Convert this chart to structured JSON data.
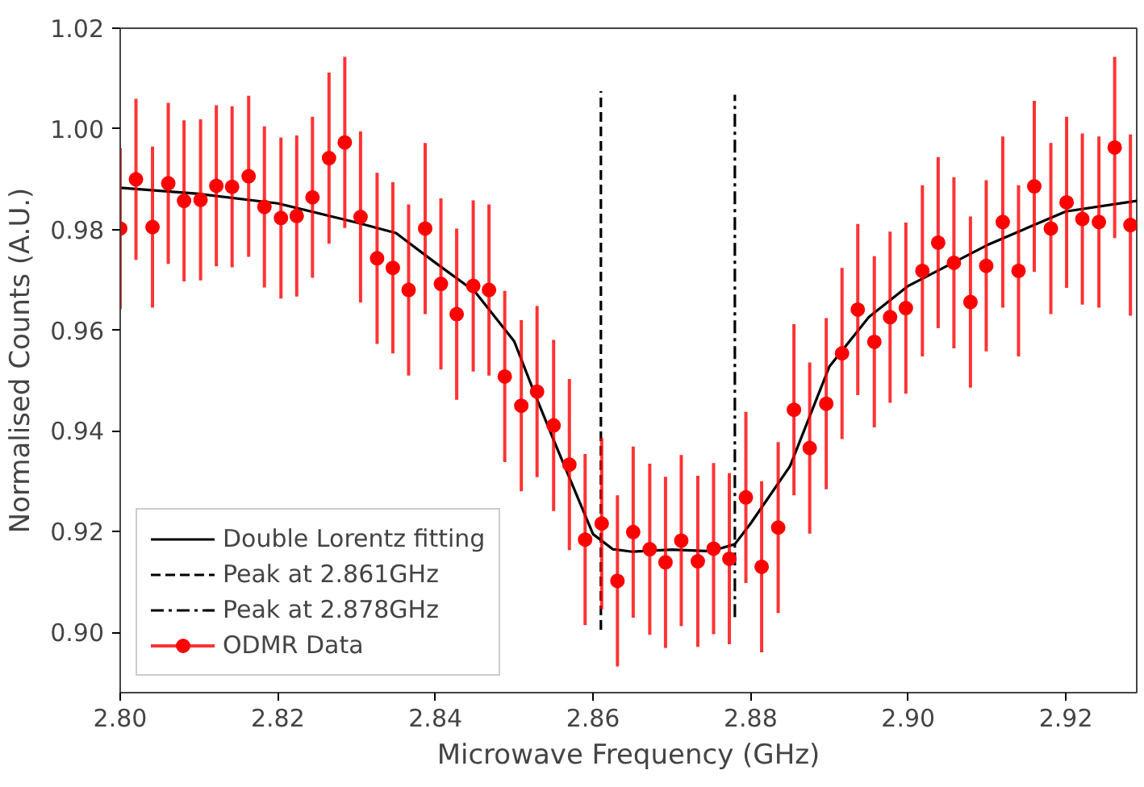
{
  "chart_data": {
    "type": "scatter",
    "xlabel": "Microwave Frequency (GHz)",
    "ylabel": "Normalised Counts (A.U.)",
    "xlim": [
      2.8,
      2.929
    ],
    "ylim": [
      0.888,
      1.02
    ],
    "xticks": [
      {
        "value": 2.8,
        "label": "2.80"
      },
      {
        "value": 2.82,
        "label": "2.82"
      },
      {
        "value": 2.84,
        "label": "2.84"
      },
      {
        "value": 2.86,
        "label": "2.86"
      },
      {
        "value": 2.88,
        "label": "2.88"
      },
      {
        "value": 2.9,
        "label": "2.90"
      },
      {
        "value": 2.92,
        "label": "2.92"
      }
    ],
    "yticks": [
      {
        "value": 0.9,
        "label": "0.90"
      },
      {
        "value": 0.92,
        "label": "0.92"
      },
      {
        "value": 0.94,
        "label": "0.94"
      },
      {
        "value": 0.96,
        "label": "0.96"
      },
      {
        "value": 0.98,
        "label": "0.98"
      },
      {
        "value": 1.0,
        "label": "1.00"
      },
      {
        "value": 1.02,
        "label": "1.02"
      }
    ],
    "grid": false,
    "legend": "bottom left",
    "marker": "circle",
    "series": [
      {
        "name": "Double Lorentz fitting",
        "type": "line",
        "line_style": "solid",
        "marker": "none",
        "color": "#000000",
        "x": [
          2.8,
          2.81,
          2.82,
          2.83,
          2.835,
          2.84,
          2.845,
          2.85,
          2.8525,
          2.855,
          2.86,
          2.8625,
          2.865,
          2.87,
          2.875,
          2.878,
          2.88,
          2.885,
          2.89,
          2.895,
          2.9,
          2.91,
          2.92,
          2.929
        ],
        "values": [
          0.9883,
          0.9871,
          0.9852,
          0.9814,
          0.9793,
          0.9734,
          0.9677,
          0.9578,
          0.9478,
          0.9382,
          0.9195,
          0.9165,
          0.916,
          0.9164,
          0.9161,
          0.9175,
          0.9216,
          0.933,
          0.9528,
          0.9626,
          0.9688,
          0.9769,
          0.9836,
          0.9857
        ]
      },
      {
        "name": "Peak at 2.861GHz",
        "type": "line",
        "line_style": "dashed",
        "marker": "none",
        "color": "#000000",
        "x": [
          2.861,
          2.861
        ],
        "values": [
          0.9005,
          1.0075
        ]
      },
      {
        "name": "Peak at 2.878GHz",
        "type": "line",
        "line_style": "dashdot",
        "marker": "none",
        "color": "#000000",
        "x": [
          2.878,
          2.878
        ],
        "values": [
          0.903,
          1.0068
        ]
      },
      {
        "name": "ODMR Data",
        "color": "#ff0000",
        "x": [
          2.8,
          2.802,
          2.8041,
          2.8061,
          2.8081,
          2.8102,
          2.8122,
          2.8142,
          2.8163,
          2.8183,
          2.8204,
          2.8224,
          2.8244,
          2.8265,
          2.8285,
          2.8305,
          2.8326,
          2.8346,
          2.8366,
          2.8387,
          2.8407,
          2.8427,
          2.8448,
          2.8468,
          2.8488,
          2.8509,
          2.8529,
          2.855,
          2.857,
          2.859,
          2.8611,
          2.8631,
          2.8651,
          2.8672,
          2.8692,
          2.8712,
          2.8733,
          2.8753,
          2.8773,
          2.8794,
          2.8814,
          2.8835,
          2.8855,
          2.8875,
          2.8896,
          2.8916,
          2.8936,
          2.8957,
          2.8977,
          2.8997,
          2.9018,
          2.9038,
          2.9058,
          2.9079,
          2.9099,
          2.912,
          2.914,
          2.916,
          2.9181,
          2.9201,
          2.9221,
          2.9242,
          2.9262,
          2.9282
        ],
        "values": [
          0.9802,
          0.99,
          0.9805,
          0.9892,
          0.9857,
          0.9859,
          0.9887,
          0.9885,
          0.9906,
          0.9845,
          0.9823,
          0.9827,
          0.9864,
          0.9942,
          0.9973,
          0.9825,
          0.9743,
          0.9724,
          0.968,
          0.9802,
          0.9692,
          0.9632,
          0.9688,
          0.968,
          0.9508,
          0.945,
          0.9478,
          0.9411,
          0.9333,
          0.9184,
          0.9216,
          0.9102,
          0.9199,
          0.9165,
          0.9139,
          0.9182,
          0.9141,
          0.9166,
          0.9146,
          0.9268,
          0.913,
          0.9208,
          0.9442,
          0.9366,
          0.9454,
          0.9554,
          0.9641,
          0.9577,
          0.9626,
          0.9644,
          0.9718,
          0.9774,
          0.9734,
          0.9656,
          0.9728,
          0.9815,
          0.9718,
          0.9886,
          0.9802,
          0.9854,
          0.9821,
          0.9815,
          0.9963,
          0.9809
        ],
        "errors": [
          0.016,
          0.016,
          0.016,
          0.016,
          0.016,
          0.016,
          0.016,
          0.016,
          0.016,
          0.016,
          0.016,
          0.016,
          0.016,
          0.017,
          0.017,
          0.017,
          0.017,
          0.017,
          0.017,
          0.017,
          0.017,
          0.017,
          0.017,
          0.017,
          0.017,
          0.017,
          0.017,
          0.017,
          0.017,
          0.017,
          0.017,
          0.017,
          0.017,
          0.017,
          0.017,
          0.017,
          0.017,
          0.017,
          0.017,
          0.017,
          0.017,
          0.017,
          0.017,
          0.017,
          0.017,
          0.017,
          0.017,
          0.017,
          0.017,
          0.017,
          0.017,
          0.017,
          0.017,
          0.017,
          0.017,
          0.017,
          0.017,
          0.017,
          0.017,
          0.017,
          0.017,
          0.017,
          0.018,
          0.018
        ]
      }
    ]
  }
}
